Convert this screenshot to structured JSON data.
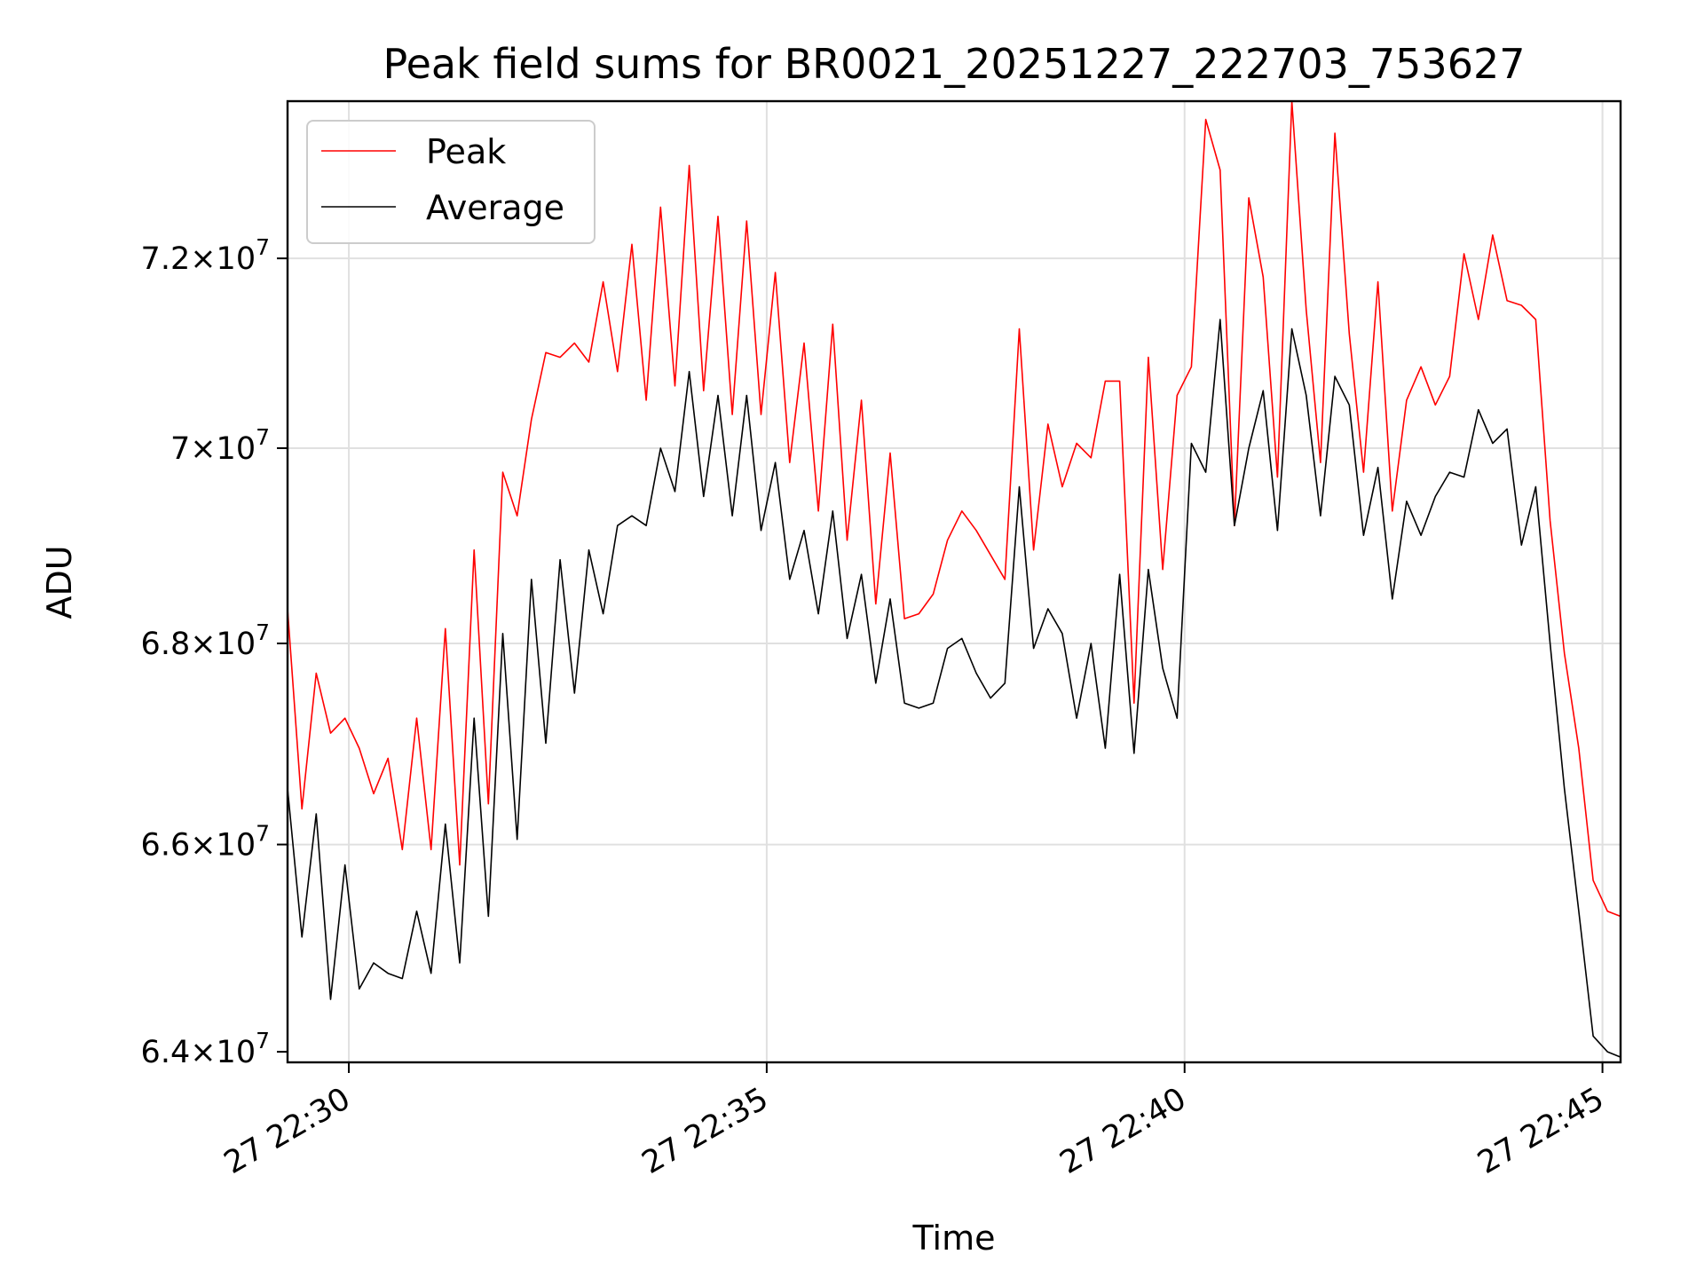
{
  "chart_data": {
    "type": "line",
    "title": "Peak field sums for BR0021_20251227_222703_753627",
    "xlabel": "Time",
    "ylabel": "ADU",
    "y_scale": "log",
    "ylim": [
      63900000,
      73700000
    ],
    "x_time_range_minutes": [
      "22:29:16",
      "22:45:13"
    ],
    "x_ticks": [
      {
        "minute": "22:30:00",
        "label": "27 22:30"
      },
      {
        "minute": "22:35:00",
        "label": "27 22:35"
      },
      {
        "minute": "22:40:00",
        "label": "27 22:40"
      },
      {
        "minute": "22:45:00",
        "label": "27 22:45"
      }
    ],
    "y_ticks": [
      {
        "value": 64000000,
        "mantissa": "6.4",
        "exponent": "7"
      },
      {
        "value": 66000000,
        "mantissa": "6.6",
        "exponent": "7"
      },
      {
        "value": 68000000,
        "mantissa": "6.8",
        "exponent": "7"
      },
      {
        "value": 70000000,
        "mantissa": "7",
        "exponent": "7"
      },
      {
        "value": 72000000,
        "mantissa": "7.2",
        "exponent": "7"
      }
    ],
    "grid": true,
    "legend_position": "top-left",
    "sample_interval_seconds": 10.3,
    "series": [
      {
        "name": "Peak",
        "color": "#ff0000",
        "values": [
          68.35,
          66.35,
          67.7,
          67.1,
          67.25,
          66.95,
          66.5,
          66.85,
          65.95,
          67.25,
          65.95,
          68.15,
          65.8,
          68.95,
          66.4,
          69.75,
          69.3,
          70.3,
          71.0,
          70.95,
          71.1,
          70.9,
          71.75,
          70.8,
          72.15,
          70.5,
          72.55,
          70.65,
          73.0,
          70.6,
          72.45,
          70.35,
          72.4,
          70.35,
          71.85,
          69.85,
          71.1,
          69.35,
          71.3,
          69.05,
          70.5,
          68.4,
          69.95,
          68.25,
          68.3,
          68.5,
          69.05,
          69.35,
          69.15,
          68.9,
          68.65,
          71.25,
          68.95,
          70.25,
          69.6,
          70.05,
          69.9,
          70.7,
          70.7,
          67.4,
          70.95,
          68.75,
          70.55,
          70.85,
          73.5,
          72.95,
          69.2,
          72.65,
          71.8,
          69.7,
          73.75,
          71.45,
          69.85,
          73.35,
          71.2,
          69.75,
          71.75,
          69.35,
          70.5,
          70.85,
          70.45,
          70.75,
          72.05,
          71.35,
          72.25,
          71.55,
          71.5,
          71.35,
          69.25,
          67.9,
          66.95,
          65.65,
          65.35,
          65.3
        ]
      },
      {
        "name": "Average",
        "color": "#000000",
        "values": [
          66.55,
          65.1,
          66.3,
          64.5,
          65.8,
          64.6,
          64.85,
          64.75,
          64.7,
          65.35,
          64.75,
          66.2,
          64.85,
          67.25,
          65.3,
          68.1,
          66.05,
          68.65,
          67.0,
          68.85,
          67.5,
          68.95,
          68.3,
          69.2,
          69.3,
          69.2,
          70.0,
          69.55,
          70.8,
          69.5,
          70.55,
          69.3,
          70.55,
          69.15,
          69.85,
          68.65,
          69.15,
          68.3,
          69.35,
          68.05,
          68.7,
          67.6,
          68.45,
          67.4,
          67.35,
          67.4,
          67.95,
          68.05,
          67.7,
          67.45,
          67.6,
          69.6,
          67.95,
          68.35,
          68.1,
          67.25,
          68.0,
          66.95,
          68.7,
          66.9,
          68.75,
          67.75,
          67.25,
          70.05,
          69.75,
          71.35,
          69.2,
          70.0,
          70.6,
          69.15,
          71.25,
          70.55,
          69.3,
          70.75,
          70.45,
          69.1,
          69.8,
          68.45,
          69.45,
          69.1,
          69.5,
          69.75,
          69.7,
          70.4,
          70.05,
          70.2,
          69.0,
          69.6,
          68.0,
          66.55,
          65.35,
          64.15,
          64.0,
          63.95
        ]
      }
    ]
  }
}
